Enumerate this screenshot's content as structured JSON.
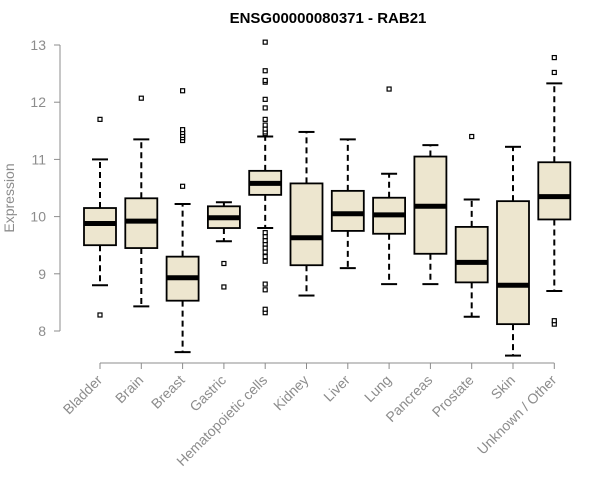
{
  "chart_data": {
    "type": "boxplot",
    "title": "ENSG00000080371 - RAB21",
    "xlabel": "",
    "ylabel": "Expression",
    "ylim": [
      7.8,
      13.1
    ],
    "yticks": [
      8,
      9,
      10,
      11,
      12,
      13
    ],
    "box_fill": "#ede6cf",
    "stroke": "#000000",
    "axis_color": "#8c8c8c",
    "categories": [
      "Bladder",
      "Brain",
      "Breast",
      "Gastric",
      "Hematopoietic cells",
      "Kidney",
      "Liver",
      "Lung",
      "Pancreas",
      "Prostate",
      "Skin",
      "Unknown / Other"
    ],
    "boxes": [
      {
        "name": "Bladder",
        "whisker_low": 8.8,
        "q1": 9.5,
        "median": 9.88,
        "q3": 10.15,
        "whisker_high": 11.0,
        "outliers": [
          8.28,
          11.7
        ]
      },
      {
        "name": "Brain",
        "whisker_low": 8.43,
        "q1": 9.45,
        "median": 9.92,
        "q3": 10.32,
        "whisker_high": 11.35,
        "outliers": [
          12.07
        ]
      },
      {
        "name": "Breast",
        "whisker_low": 7.63,
        "q1": 8.53,
        "median": 8.93,
        "q3": 9.3,
        "whisker_high": 10.22,
        "outliers": [
          10.53,
          11.33,
          11.38,
          11.42,
          11.47,
          11.52,
          12.2
        ]
      },
      {
        "name": "Gastric",
        "whisker_low": 9.57,
        "q1": 9.8,
        "median": 9.98,
        "q3": 10.18,
        "whisker_high": 10.25,
        "outliers": [
          8.77,
          9.18
        ]
      },
      {
        "name": "Hematopoietic cells",
        "whisker_low": 9.8,
        "q1": 10.38,
        "median": 10.58,
        "q3": 10.8,
        "whisker_high": 11.4,
        "outliers": [
          8.32,
          8.38,
          8.72,
          8.82,
          9.22,
          9.3,
          9.38,
          9.45,
          9.52,
          9.58,
          9.65,
          9.72,
          11.45,
          11.48,
          11.53,
          11.6,
          11.7,
          11.9,
          12.05,
          12.35,
          12.38,
          12.55,
          13.05
        ]
      },
      {
        "name": "Kidney",
        "whisker_low": 8.62,
        "q1": 9.15,
        "median": 9.63,
        "q3": 10.58,
        "whisker_high": 11.48,
        "outliers": []
      },
      {
        "name": "Liver",
        "whisker_low": 9.1,
        "q1": 9.75,
        "median": 10.05,
        "q3": 10.45,
        "whisker_high": 11.35,
        "outliers": []
      },
      {
        "name": "Lung",
        "whisker_low": 8.82,
        "q1": 9.7,
        "median": 10.03,
        "q3": 10.33,
        "whisker_high": 10.75,
        "outliers": [
          12.23
        ]
      },
      {
        "name": "Pancreas",
        "whisker_low": 8.82,
        "q1": 9.35,
        "median": 10.18,
        "q3": 11.05,
        "whisker_high": 11.25,
        "outliers": []
      },
      {
        "name": "Prostate",
        "whisker_low": 8.25,
        "q1": 8.85,
        "median": 9.2,
        "q3": 9.82,
        "whisker_high": 10.3,
        "outliers": [
          11.4
        ]
      },
      {
        "name": "Skin",
        "whisker_low": 7.57,
        "q1": 8.12,
        "median": 8.8,
        "q3": 10.27,
        "whisker_high": 11.22,
        "outliers": []
      },
      {
        "name": "Unknown / Other",
        "whisker_low": 8.7,
        "q1": 9.95,
        "median": 10.35,
        "q3": 10.95,
        "whisker_high": 12.33,
        "outliers": [
          8.12,
          8.18,
          12.52,
          12.78
        ]
      }
    ]
  }
}
